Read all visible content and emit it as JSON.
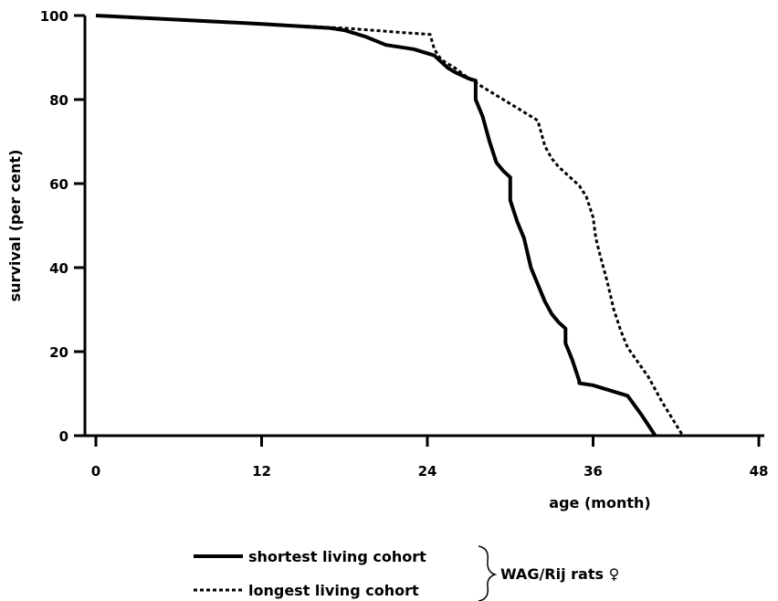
{
  "chart_data": {
    "type": "line",
    "title": "",
    "xlabel": "age (month)",
    "ylabel": "survival (per cent)",
    "xlim": [
      0,
      48
    ],
    "ylim": [
      0,
      100
    ],
    "x_ticks": [
      "0",
      "12",
      "24",
      "36",
      "48"
    ],
    "y_ticks": [
      "0",
      "20",
      "40",
      "60",
      "80",
      "100"
    ],
    "grid": false,
    "legend_position": "bottom-center",
    "legend_group_label": "WAG/Rij rats ♀",
    "series": [
      {
        "name": "shortest living cohort",
        "style": "solid",
        "points": [
          [
            0,
            100
          ],
          [
            6,
            99
          ],
          [
            12,
            98
          ],
          [
            17,
            97
          ],
          [
            18,
            96.5
          ],
          [
            19.5,
            95
          ],
          [
            21,
            93
          ],
          [
            23,
            92
          ],
          [
            24.5,
            90.5
          ],
          [
            25,
            89
          ],
          [
            25.5,
            87.5
          ],
          [
            26,
            86.5
          ],
          [
            27,
            85
          ],
          [
            27.5,
            84.5
          ],
          [
            27.5,
            80
          ],
          [
            28,
            76
          ],
          [
            28.5,
            70
          ],
          [
            29,
            65
          ],
          [
            29.5,
            63
          ],
          [
            30,
            61.5
          ],
          [
            30,
            56
          ],
          [
            30.5,
            51
          ],
          [
            31,
            47
          ],
          [
            31.5,
            40
          ],
          [
            32,
            36
          ],
          [
            32.5,
            32
          ],
          [
            33,
            29
          ],
          [
            33.5,
            27
          ],
          [
            34,
            25.5
          ],
          [
            34,
            22
          ],
          [
            34.5,
            18
          ],
          [
            35,
            13
          ],
          [
            35,
            12.5
          ],
          [
            36,
            12
          ],
          [
            37,
            11
          ],
          [
            38.5,
            9.5
          ],
          [
            39.5,
            5
          ],
          [
            40.5,
            0
          ]
        ]
      },
      {
        "name": "longest living cohort",
        "style": "dashed",
        "points": [
          [
            0,
            100
          ],
          [
            6,
            99
          ],
          [
            12,
            98
          ],
          [
            18,
            97
          ],
          [
            20,
            96.5
          ],
          [
            22,
            96
          ],
          [
            24.2,
            95.5
          ],
          [
            24.5,
            92
          ],
          [
            25,
            89.5
          ],
          [
            26,
            87.5
          ],
          [
            27,
            85
          ],
          [
            28,
            83
          ],
          [
            29,
            81
          ],
          [
            30,
            79
          ],
          [
            31,
            77
          ],
          [
            32,
            75
          ],
          [
            32.5,
            69
          ],
          [
            33,
            66
          ],
          [
            33.5,
            64
          ],
          [
            34,
            62.5
          ],
          [
            35,
            59.5
          ],
          [
            35.5,
            57
          ],
          [
            36,
            52
          ],
          [
            36.2,
            47
          ],
          [
            36.5,
            43
          ],
          [
            37,
            37
          ],
          [
            37.5,
            30
          ],
          [
            38,
            25
          ],
          [
            38.5,
            21
          ],
          [
            40,
            14
          ],
          [
            41,
            8
          ],
          [
            42.5,
            0
          ]
        ]
      }
    ]
  }
}
